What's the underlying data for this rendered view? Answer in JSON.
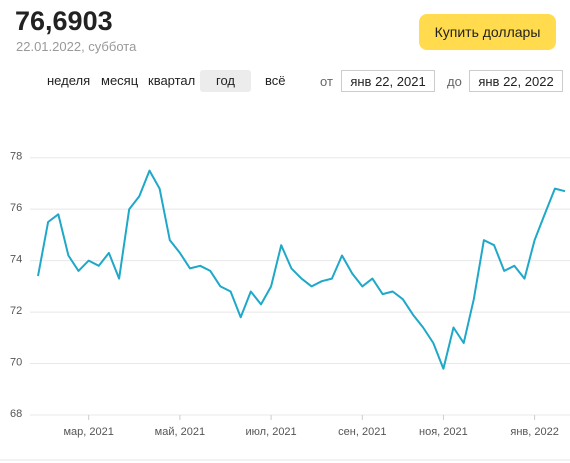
{
  "header": {
    "value": "76,6903",
    "date": "22.01.2022, суббота",
    "button": "Купить доллары"
  },
  "periods": {
    "items": [
      "неделя",
      "месяц",
      "квартал",
      "год",
      "всё"
    ],
    "selected": 3
  },
  "range": {
    "from_label": "от",
    "from": "янв 22, 2021",
    "to_label": "до",
    "to": "янв 22, 2022"
  },
  "chart_data": {
    "type": "line",
    "categories": [
      null,
      null,
      null,
      null,
      null,
      "мар, 2021",
      null,
      null,
      null,
      null,
      null,
      null,
      null,
      null,
      "май, 2021",
      null,
      null,
      null,
      null,
      null,
      null,
      null,
      null,
      "июл, 2021",
      null,
      null,
      null,
      null,
      null,
      null,
      null,
      null,
      "сен, 2021",
      null,
      null,
      null,
      null,
      null,
      null,
      null,
      "ноя, 2021",
      null,
      null,
      null,
      null,
      null,
      null,
      null,
      null,
      "янв, 2022",
      null,
      null,
      null
    ],
    "series": [
      {
        "color": "#1fa8c8",
        "values": [
          73.4,
          75.5,
          75.8,
          74.2,
          73.6,
          74.0,
          73.8,
          74.3,
          73.3,
          76.0,
          76.5,
          77.5,
          76.8,
          74.8,
          74.3,
          73.7,
          73.8,
          73.6,
          73.0,
          72.8,
          71.8,
          72.8,
          72.3,
          73.0,
          74.6,
          73.7,
          73.3,
          73.0,
          73.2,
          73.3,
          74.2,
          73.5,
          73.0,
          73.3,
          72.7,
          72.8,
          72.5,
          71.9,
          71.4,
          70.8,
          69.8,
          71.4,
          70.8,
          72.5,
          74.8,
          74.6,
          73.6,
          73.8,
          73.3,
          74.8,
          75.8,
          76.8,
          76.7
        ]
      }
    ],
    "ylim": [
      68,
      79
    ],
    "yticks": [
      68,
      70,
      72,
      74,
      76,
      78
    ],
    "grid": true
  }
}
